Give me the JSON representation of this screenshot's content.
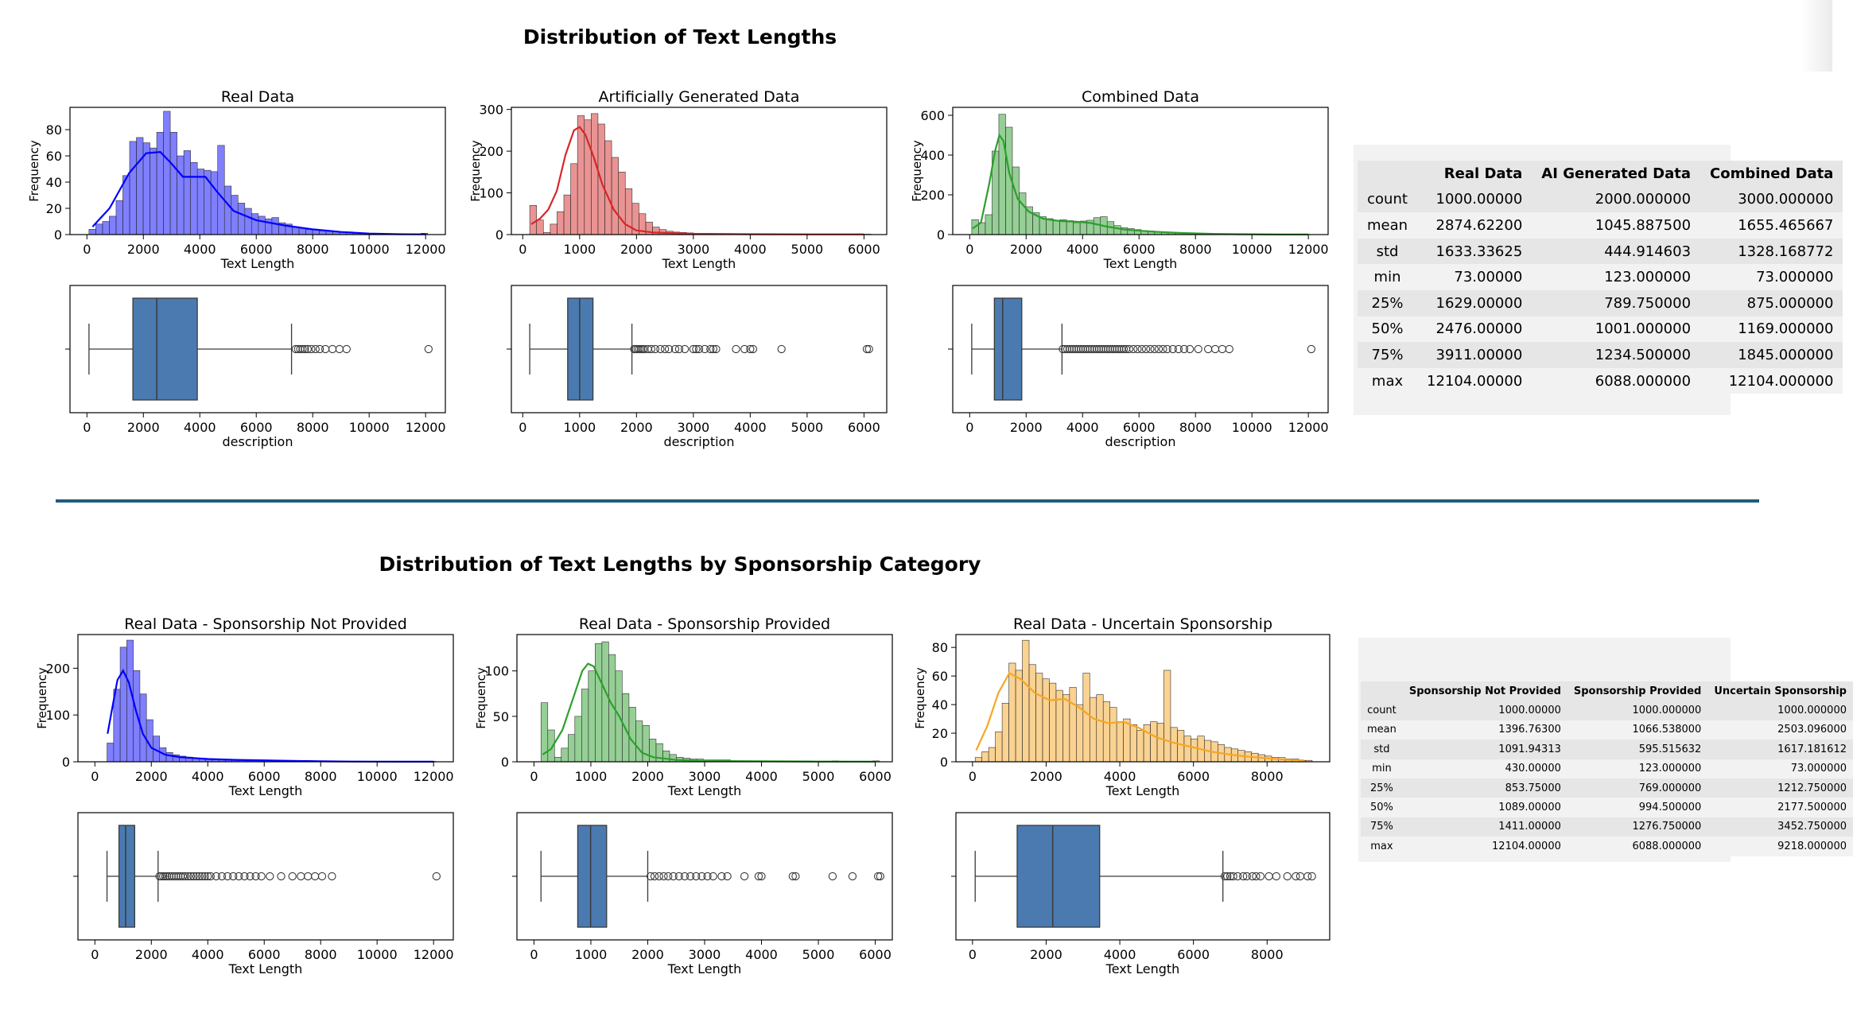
{
  "top_section": {
    "suptitle": "Distribution of Text Lengths"
  },
  "bottom_section": {
    "suptitle": "Distribution of Text Lengths by Sponsorship Category"
  },
  "chart_data": [
    {
      "id": "real",
      "type": "histogram",
      "title": "Real Data",
      "xlabel": "Text Length",
      "ylabel": "Frequency",
      "color": "#0000ff",
      "xlim": [
        -600,
        12700
      ],
      "ylim": [
        0,
        97
      ],
      "xticks": [
        0,
        2000,
        4000,
        6000,
        8000,
        10000,
        12000
      ],
      "yticks": [
        0,
        20,
        40,
        60,
        80
      ],
      "bin_start": 73,
      "bin_width": 240,
      "counts": [
        4,
        8,
        10,
        14,
        26,
        45,
        71,
        74,
        70,
        66,
        78,
        94,
        78,
        60,
        64,
        55,
        50,
        49,
        48,
        68,
        37,
        30,
        24,
        20,
        16,
        14,
        12,
        13,
        9,
        8,
        6,
        5,
        4,
        4,
        3,
        3,
        2,
        2,
        2,
        1,
        1,
        1,
        1,
        0,
        0,
        0,
        0,
        0,
        0,
        1
      ],
      "kde": [
        [
          200,
          6
        ],
        [
          800,
          20
        ],
        [
          1500,
          47
        ],
        [
          2100,
          62
        ],
        [
          2600,
          63
        ],
        [
          3000,
          54
        ],
        [
          3400,
          44
        ],
        [
          3800,
          44
        ],
        [
          4200,
          44
        ],
        [
          4600,
          33
        ],
        [
          5200,
          18
        ],
        [
          6000,
          11
        ],
        [
          7000,
          7
        ],
        [
          8000,
          4
        ],
        [
          9000,
          2
        ],
        [
          10000,
          0.8
        ],
        [
          11000,
          0.3
        ],
        [
          12000,
          0.2
        ]
      ]
    },
    {
      "id": "real_box",
      "type": "box",
      "xlabel": "description",
      "color": "#4a7ab0",
      "xlim": [
        -600,
        12700
      ],
      "xticks": [
        0,
        2000,
        4000,
        6000,
        8000,
        10000,
        12000
      ],
      "min": 73,
      "q1": 1629,
      "median": 2476,
      "q3": 3911,
      "whisker_high": 7250,
      "outliers": [
        7400,
        7480,
        7560,
        7640,
        7720,
        7820,
        7950,
        8100,
        8250,
        8450,
        8700,
        8950,
        9200,
        12104
      ]
    },
    {
      "id": "ai",
      "type": "histogram",
      "title": "Artificially Generated Data",
      "xlabel": "Text Length",
      "ylabel": "Frequency",
      "color": "#d62728",
      "xlim": [
        -200,
        6400
      ],
      "ylim": [
        0,
        305
      ],
      "xticks": [
        0,
        1000,
        2000,
        3000,
        4000,
        5000,
        6000
      ],
      "yticks": [
        0,
        100,
        200,
        300
      ],
      "bin_start": 123,
      "bin_width": 120,
      "counts": [
        70,
        35,
        5,
        25,
        55,
        95,
        170,
        285,
        275,
        290,
        265,
        225,
        185,
        150,
        110,
        75,
        50,
        30,
        18,
        12,
        8,
        6,
        5,
        4,
        3,
        3,
        2,
        2,
        2,
        2,
        1,
        1,
        1,
        1,
        1,
        1,
        1,
        0,
        0,
        0,
        0,
        0,
        0,
        0,
        0,
        0,
        0,
        0,
        1,
        1
      ],
      "kde": [
        [
          150,
          25
        ],
        [
          300,
          38
        ],
        [
          450,
          60
        ],
        [
          600,
          105
        ],
        [
          750,
          190
        ],
        [
          900,
          250
        ],
        [
          1000,
          258
        ],
        [
          1100,
          240
        ],
        [
          1250,
          185
        ],
        [
          1400,
          120
        ],
        [
          1600,
          60
        ],
        [
          1800,
          25
        ],
        [
          2000,
          10
        ],
        [
          2300,
          5
        ],
        [
          3000,
          2
        ],
        [
          4000,
          1
        ],
        [
          5000,
          0.5
        ],
        [
          6000,
          0.5
        ]
      ]
    },
    {
      "id": "ai_box",
      "type": "box",
      "xlabel": "description",
      "color": "#4a7ab0",
      "xlim": [
        -200,
        6400
      ],
      "xticks": [
        0,
        1000,
        2000,
        3000,
        4000,
        5000,
        6000
      ],
      "min": 123,
      "q1": 790,
      "median": 1001,
      "q3": 1235,
      "whisker_high": 1920,
      "outliers": [
        1960,
        1990,
        2020,
        2050,
        2080,
        2110,
        2140,
        2200,
        2260,
        2330,
        2420,
        2500,
        2570,
        2680,
        2750,
        2850,
        3000,
        3050,
        3100,
        3200,
        3300,
        3350,
        3400,
        3750,
        3900,
        4000,
        4050,
        4550,
        6050,
        6088
      ]
    },
    {
      "id": "combined",
      "type": "histogram",
      "title": "Combined Data",
      "xlabel": "Text Length",
      "ylabel": "Frequency",
      "color": "#2ca02c",
      "xlim": [
        -600,
        12700
      ],
      "ylim": [
        0,
        640
      ],
      "xticks": [
        0,
        2000,
        4000,
        6000,
        8000,
        10000,
        12000
      ],
      "yticks": [
        0,
        200,
        400,
        600
      ],
      "bin_start": 73,
      "bin_width": 240,
      "counts": [
        75,
        60,
        100,
        420,
        605,
        540,
        340,
        210,
        140,
        110,
        90,
        80,
        70,
        75,
        70,
        60,
        68,
        72,
        85,
        90,
        65,
        45,
        35,
        30,
        25,
        20,
        18,
        15,
        12,
        10,
        8,
        7,
        6,
        5,
        4,
        3,
        3,
        2,
        2,
        1,
        1,
        1,
        1,
        0,
        0,
        0,
        0,
        0,
        0,
        1
      ],
      "kde": [
        [
          100,
          30
        ],
        [
          400,
          60
        ],
        [
          700,
          260
        ],
        [
          900,
          420
        ],
        [
          1050,
          500
        ],
        [
          1200,
          470
        ],
        [
          1400,
          310
        ],
        [
          1700,
          180
        ],
        [
          2100,
          115
        ],
        [
          2600,
          80
        ],
        [
          3200,
          68
        ],
        [
          3800,
          65
        ],
        [
          4300,
          58
        ],
        [
          4800,
          42
        ],
        [
          5500,
          25
        ],
        [
          6500,
          15
        ],
        [
          7500,
          8
        ],
        [
          8500,
          4
        ],
        [
          9500,
          2
        ],
        [
          11000,
          0.5
        ],
        [
          12000,
          0.2
        ]
      ]
    },
    {
      "id": "combined_box",
      "type": "box",
      "xlabel": "description",
      "color": "#4a7ab0",
      "xlim": [
        -600,
        12700
      ],
      "xticks": [
        0,
        2000,
        4000,
        6000,
        8000,
        10000,
        12000
      ],
      "min": 73,
      "q1": 875,
      "median": 1169,
      "q3": 1845,
      "whisker_high": 3270,
      "outliers": [
        3300,
        3380,
        3460,
        3540,
        3620,
        3700,
        3780,
        3860,
        3940,
        4020,
        4100,
        4180,
        4260,
        4340,
        4420,
        4500,
        4580,
        4660,
        4740,
        4820,
        4900,
        4980,
        5060,
        5140,
        5220,
        5300,
        5380,
        5460,
        5540,
        5650,
        5800,
        5950,
        6100,
        6250,
        6400,
        6550,
        6700,
        6850,
        7000,
        7200,
        7400,
        7600,
        7800,
        8100,
        8450,
        8700,
        8950,
        9200,
        12104
      ]
    },
    {
      "id": "not_provided",
      "type": "histogram",
      "title": "Real Data - Sponsorship Not Provided",
      "xlabel": "Text Length",
      "ylabel": "Frequency",
      "color": "#0000ff",
      "xlim": [
        -600,
        12700
      ],
      "ylim": [
        0,
        272
      ],
      "xticks": [
        0,
        2000,
        4000,
        6000,
        8000,
        10000,
        12000
      ],
      "yticks": [
        0,
        100,
        200
      ],
      "bin_start": 430,
      "bin_width": 233,
      "counts": [
        40,
        155,
        245,
        260,
        195,
        145,
        90,
        55,
        30,
        20,
        15,
        12,
        10,
        8,
        6,
        5,
        5,
        4,
        4,
        3,
        3,
        2,
        2,
        2,
        2,
        1,
        1,
        1,
        1,
        1,
        1,
        1,
        1,
        0,
        0,
        0,
        0,
        0,
        0,
        0,
        0,
        0,
        0,
        0,
        0,
        0,
        0,
        0,
        0,
        1
      ],
      "kde": [
        [
          450,
          60
        ],
        [
          600,
          110
        ],
        [
          800,
          175
        ],
        [
          1000,
          195
        ],
        [
          1200,
          170
        ],
        [
          1450,
          110
        ],
        [
          1700,
          60
        ],
        [
          2000,
          30
        ],
        [
          2500,
          15
        ],
        [
          3000,
          10
        ],
        [
          4000,
          6
        ],
        [
          5000,
          4
        ],
        [
          6000,
          3
        ],
        [
          7000,
          2
        ],
        [
          8000,
          1
        ],
        [
          9000,
          0.5
        ],
        [
          10000,
          0.3
        ],
        [
          11000,
          0.2
        ],
        [
          12000,
          0.2
        ]
      ]
    },
    {
      "id": "not_provided_box",
      "type": "box",
      "xlabel": "Text Length",
      "color": "#4a7ab0",
      "xlim": [
        -600,
        12700
      ],
      "xticks": [
        0,
        2000,
        4000,
        6000,
        8000,
        10000,
        12000
      ],
      "min": 430,
      "q1": 854,
      "median": 1089,
      "q3": 1411,
      "whisker_high": 2240,
      "outliers": [
        2290,
        2350,
        2420,
        2490,
        2560,
        2640,
        2720,
        2800,
        2880,
        2960,
        3040,
        3120,
        3200,
        3300,
        3400,
        3500,
        3600,
        3700,
        3800,
        3900,
        4000,
        4100,
        4300,
        4500,
        4700,
        4900,
        5100,
        5300,
        5500,
        5700,
        5900,
        6200,
        6600,
        7000,
        7300,
        7550,
        7800,
        8050,
        8400,
        12104
      ]
    },
    {
      "id": "provided",
      "type": "histogram",
      "title": "Real Data - Sponsorship Provided",
      "xlabel": "Text Length",
      "ylabel": "Frequency",
      "color": "#2ca02c",
      "xlim": [
        -300,
        6300
      ],
      "ylim": [
        0,
        140
      ],
      "xticks": [
        0,
        1000,
        2000,
        3000,
        4000,
        5000,
        6000
      ],
      "yticks": [
        0,
        50,
        100
      ],
      "bin_start": 123,
      "bin_width": 119,
      "counts": [
        65,
        35,
        5,
        15,
        30,
        50,
        80,
        100,
        130,
        132,
        118,
        100,
        75,
        60,
        45,
        40,
        25,
        20,
        12,
        8,
        5,
        4,
        3,
        3,
        2,
        2,
        2,
        2,
        1,
        1,
        1,
        1,
        1,
        1,
        0,
        0,
        0,
        1,
        1,
        0,
        0,
        0,
        0,
        1,
        0,
        0,
        0,
        0,
        0,
        1
      ],
      "kde": [
        [
          150,
          8
        ],
        [
          300,
          14
        ],
        [
          500,
          35
        ],
        [
          700,
          72
        ],
        [
          850,
          100
        ],
        [
          950,
          108
        ],
        [
          1050,
          105
        ],
        [
          1200,
          85
        ],
        [
          1350,
          65
        ],
        [
          1500,
          50
        ],
        [
          1700,
          25
        ],
        [
          1900,
          10
        ],
        [
          2100,
          5
        ],
        [
          2500,
          2
        ],
        [
          3000,
          1
        ],
        [
          4000,
          0.5
        ],
        [
          5000,
          0.3
        ],
        [
          6000,
          0.2
        ]
      ]
    },
    {
      "id": "provided_box",
      "type": "box",
      "xlabel": "Text Length",
      "color": "#4a7ab0",
      "xlim": [
        -300,
        6300
      ],
      "xticks": [
        0,
        1000,
        2000,
        3000,
        4000,
        5000,
        6000
      ],
      "min": 123,
      "q1": 769,
      "median": 995,
      "q3": 1277,
      "whisker_high": 2000,
      "outliers": [
        2050,
        2120,
        2200,
        2280,
        2360,
        2450,
        2550,
        2650,
        2750,
        2850,
        2950,
        3050,
        3150,
        3300,
        3400,
        3700,
        3950,
        4000,
        4550,
        4600,
        5250,
        5600,
        6050,
        6088
      ]
    },
    {
      "id": "uncertain",
      "type": "histogram",
      "title": "Real Data - Uncertain Sponsorship",
      "xlabel": "Text Length",
      "ylabel": "Frequency",
      "color": "#f5a623",
      "xlim": [
        -450,
        9700
      ],
      "ylim": [
        0,
        89
      ],
      "xticks": [
        0,
        2000,
        4000,
        6000,
        8000
      ],
      "yticks": [
        0,
        20,
        40,
        60,
        80
      ],
      "bin_start": 73,
      "bin_width": 183,
      "counts": [
        3,
        7,
        10,
        21,
        41,
        69,
        64,
        85,
        68,
        62,
        58,
        55,
        50,
        47,
        52,
        40,
        62,
        45,
        47,
        42,
        38,
        28,
        30,
        26,
        22,
        26,
        28,
        27,
        64,
        24,
        22,
        18,
        16,
        18,
        15,
        14,
        12,
        10,
        9,
        8,
        7,
        6,
        5,
        4,
        3,
        3,
        2,
        2,
        1,
        1
      ],
      "kde": [
        [
          100,
          8
        ],
        [
          400,
          25
        ],
        [
          700,
          48
        ],
        [
          1000,
          62
        ],
        [
          1300,
          58
        ],
        [
          1700,
          48
        ],
        [
          2100,
          43
        ],
        [
          2500,
          44
        ],
        [
          2900,
          38
        ],
        [
          3300,
          30
        ],
        [
          3700,
          27
        ],
        [
          4100,
          28
        ],
        [
          4500,
          24
        ],
        [
          5000,
          17
        ],
        [
          5500,
          13
        ],
        [
          6000,
          10
        ],
        [
          6500,
          7
        ],
        [
          7000,
          5
        ],
        [
          7500,
          3.5
        ],
        [
          8000,
          2.5
        ],
        [
          8500,
          1.5
        ],
        [
          9000,
          1
        ]
      ]
    },
    {
      "id": "uncertain_box",
      "type": "box",
      "xlabel": "Text Length",
      "color": "#4a7ab0",
      "xlim": [
        -450,
        9700
      ],
      "xticks": [
        0,
        2000,
        4000,
        6000,
        8000
      ],
      "min": 73,
      "q1": 1213,
      "median": 2178,
      "q3": 3453,
      "whisker_high": 6800,
      "outliers": [
        6850,
        6920,
        7000,
        7080,
        7200,
        7350,
        7450,
        7600,
        7700,
        7820,
        8050,
        8250,
        8550,
        8780,
        8900,
        9100,
        9218
      ]
    }
  ],
  "stats_all": {
    "columns": [
      "",
      "Real Data",
      "AI Generated Data",
      "Combined Data"
    ],
    "rows": [
      [
        "count",
        "1000.00000",
        "2000.000000",
        "3000.000000"
      ],
      [
        "mean",
        "2874.62200",
        "1045.887500",
        "1655.465667"
      ],
      [
        "std",
        "1633.33625",
        "444.914603",
        "1328.168772"
      ],
      [
        "min",
        "73.00000",
        "123.000000",
        "73.000000"
      ],
      [
        "25%",
        "1629.00000",
        "789.750000",
        "875.000000"
      ],
      [
        "50%",
        "2476.00000",
        "1001.000000",
        "1169.000000"
      ],
      [
        "75%",
        "3911.00000",
        "1234.500000",
        "1845.000000"
      ],
      [
        "max",
        "12104.00000",
        "6088.000000",
        "12104.000000"
      ]
    ]
  },
  "stats_sponsorship": {
    "columns": [
      "",
      "Sponsorship Not Provided",
      "Sponsorship Provided",
      "Uncertain Sponsorship"
    ],
    "rows": [
      [
        "count",
        "1000.00000",
        "1000.000000",
        "1000.000000"
      ],
      [
        "mean",
        "1396.76300",
        "1066.538000",
        "2503.096000"
      ],
      [
        "std",
        "1091.94313",
        "595.515632",
        "1617.181612"
      ],
      [
        "min",
        "430.00000",
        "123.000000",
        "73.000000"
      ],
      [
        "25%",
        "853.75000",
        "769.000000",
        "1212.750000"
      ],
      [
        "50%",
        "1089.00000",
        "994.500000",
        "2177.500000"
      ],
      [
        "75%",
        "1411.00000",
        "1276.750000",
        "3452.750000"
      ],
      [
        "max",
        "12104.00000",
        "6088.000000",
        "9218.000000"
      ]
    ]
  }
}
